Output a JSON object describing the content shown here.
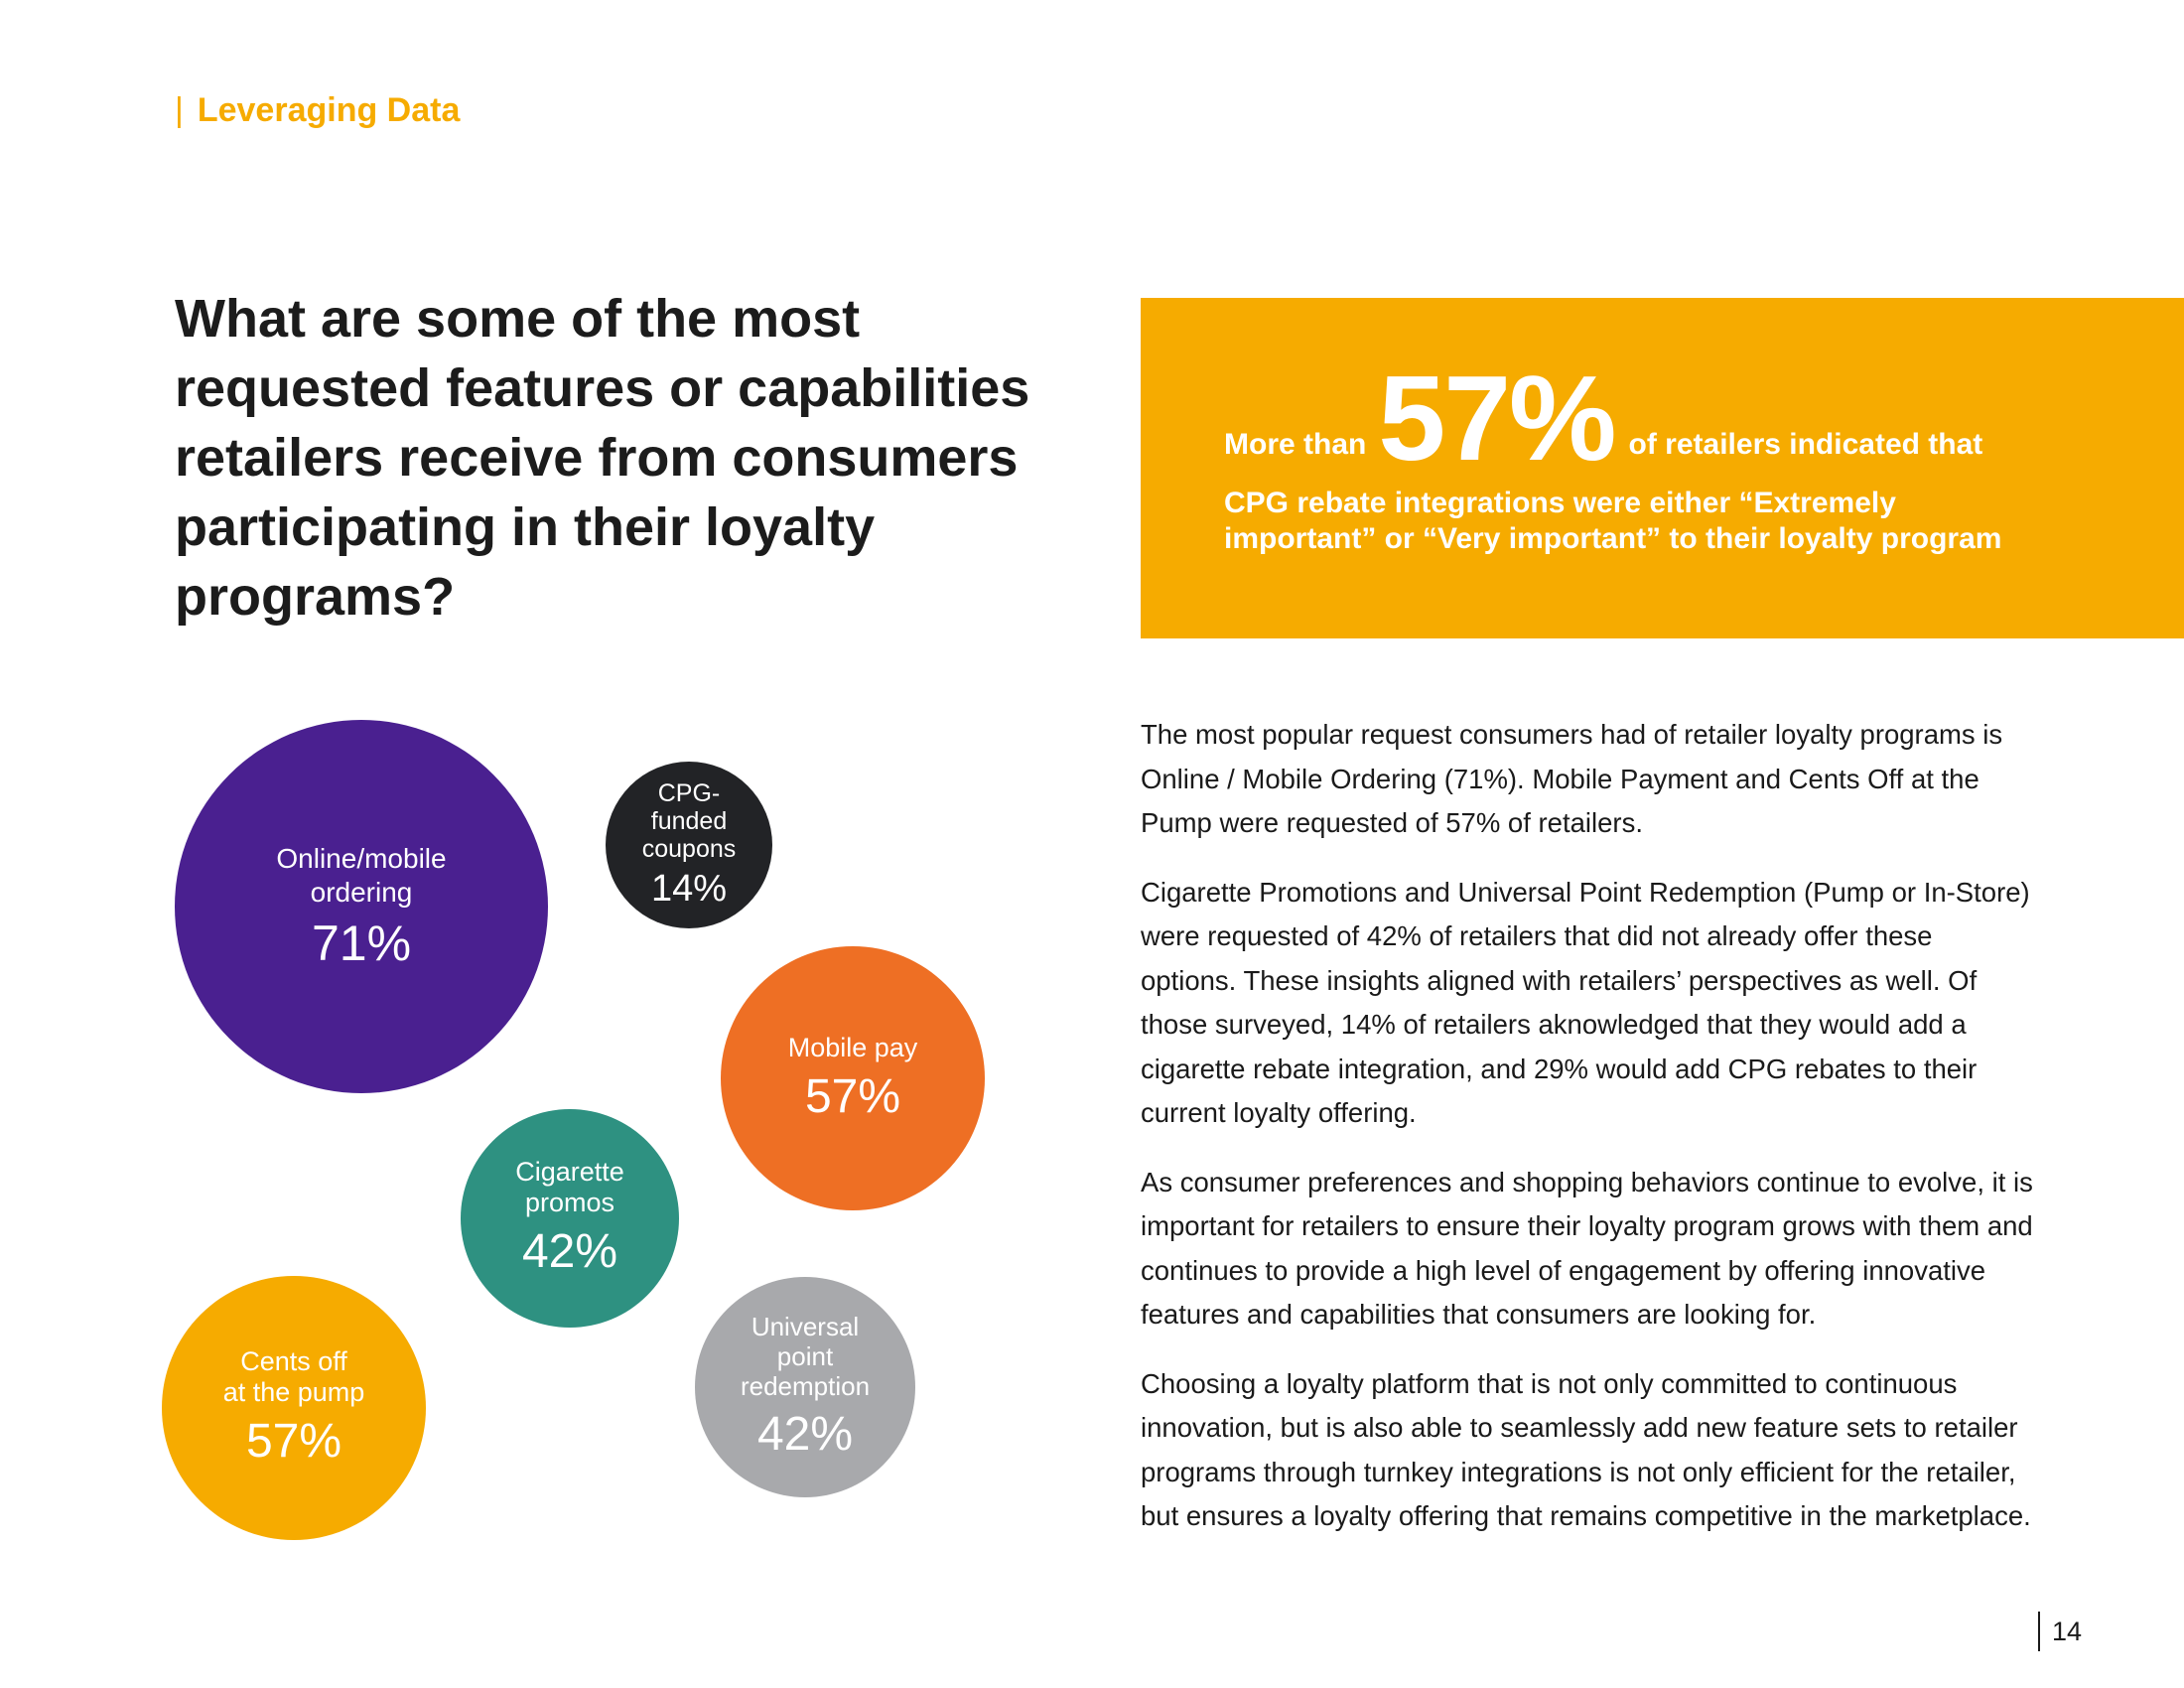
{
  "header": {
    "divider": "|",
    "section": "Leveraging Data"
  },
  "question": "What are some of the most requested features or capabilities retailers receive from consumers participating in their loyalty programs?",
  "callout": {
    "prefix": "More than",
    "stat": "57%",
    "line1_suffix": "of retailers indicated that",
    "line2": "CPG rebate integrations were either “Extremely",
    "line3": "important” or “Very important” to their loyalty program"
  },
  "chart_data": {
    "type": "bubble",
    "title": "",
    "bubbles": [
      {
        "label": "Online/mobile ordering",
        "value": 71,
        "display": "71%",
        "color": "#4a2090"
      },
      {
        "label": "CPG-funded coupons",
        "value": 14,
        "display": "14%",
        "color": "#222326"
      },
      {
        "label": "Mobile pay",
        "value": 57,
        "display": "57%",
        "color": "#ee6f24"
      },
      {
        "label": "Cigarette promos",
        "value": 42,
        "display": "42%",
        "color": "#2e9181"
      },
      {
        "label": "Cents off at the pump",
        "value": 57,
        "display": "57%",
        "color": "#f6ab00"
      },
      {
        "label": "Universal point redemption",
        "value": 42,
        "display": "42%",
        "color": "#a8a9ac"
      }
    ]
  },
  "bubble_text": {
    "online": {
      "l1": "Online/mobile",
      "l2": "ordering",
      "pct": "71%"
    },
    "cpg": {
      "l1": "CPG-",
      "l2": "funded",
      "l3": "coupons",
      "pct": "14%"
    },
    "mobile": {
      "l1": "Mobile pay",
      "pct": "57%"
    },
    "cig": {
      "l1": "Cigarette",
      "l2": "promos",
      "pct": "42%"
    },
    "cents": {
      "l1": "Cents off",
      "l2": "at the pump",
      "pct": "57%"
    },
    "univ": {
      "l1": "Universal",
      "l2": "point",
      "l3": "redemption",
      "pct": "42%"
    }
  },
  "body": {
    "p1": "The most popular request consumers had of retailer loyalty programs is Online / Mobile Ordering (71%). Mobile Payment and Cents Off at the Pump were requested of 57% of retailers.",
    "p2": "Cigarette Promotions and Universal Point Redemption (Pump or In-Store) were requested of 42% of retailers that did not already offer these options. These insights aligned with retailers’ perspectives as well. Of those surveyed, 14% of retailers aknowledged that they would add a cigarette rebate integration, and 29% would add CPG rebates to their current loyalty offering.",
    "p3": "As consumer preferences and shopping behaviors continue to evolve, it is important for retailers to ensure their loyalty program grows with them and continues to provide a high level of engagement by offering innovative features and capabilities that consumers are looking for.",
    "p4": "Choosing a loyalty platform that is not only committed to continuous innovation, but is also able to seamlessly add new feature sets to retailer programs through turnkey integrations is not only efficient for the retailer, but ensures a loyalty offering that remains competitive in the marketplace."
  },
  "page_number": "14"
}
